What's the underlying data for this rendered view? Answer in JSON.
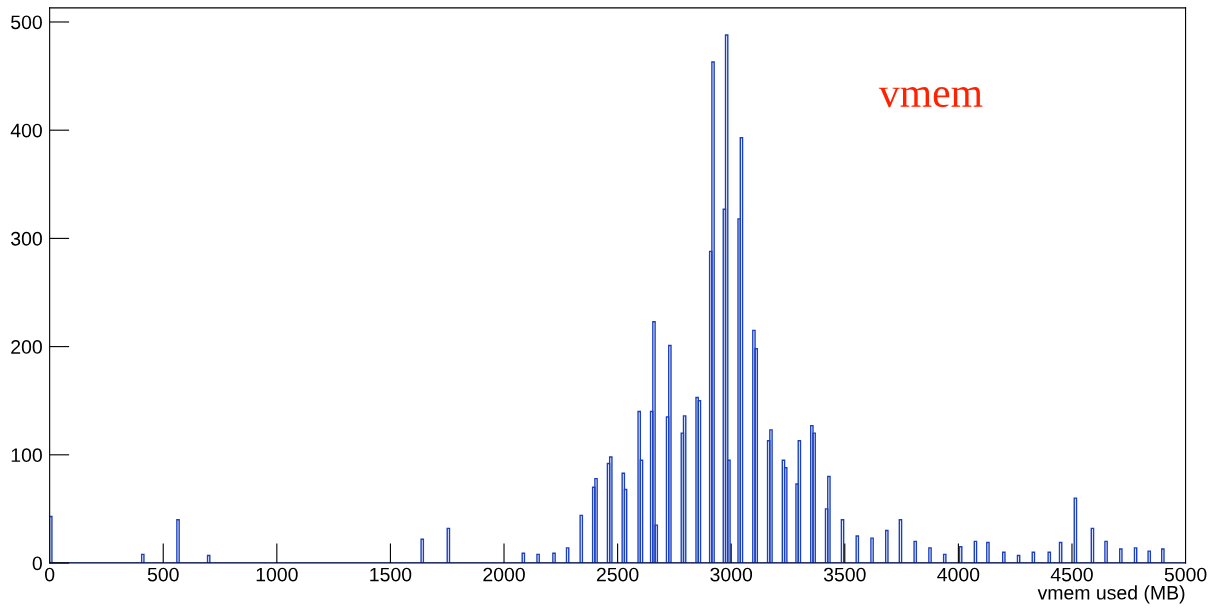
{
  "chart_data": {
    "type": "histogram",
    "xlabel": "vmem used (MB)",
    "annotations": [
      "vmem"
    ],
    "color": "#1a3fbf",
    "bins": [
      0,
      10,
      405,
      415,
      560,
      570,
      695,
      705,
      1635,
      1645,
      1750,
      1760,
      2080,
      2090,
      2145,
      2155,
      2215,
      2225,
      2275,
      2285,
      2335,
      2345,
      2390,
      2400,
      2410,
      2455,
      2465,
      2475,
      2520,
      2530,
      2540,
      2590,
      2600,
      2610,
      2645,
      2655,
      2665,
      2675,
      2715,
      2725,
      2735,
      2780,
      2790,
      2800,
      2845,
      2855,
      2865,
      2905,
      2915,
      2925,
      2965,
      2975,
      2985,
      2995,
      3030,
      3040,
      3050,
      3095,
      3105,
      3115,
      3160,
      3170,
      3180,
      3225,
      3235,
      3245,
      3285,
      3295,
      3305,
      3350,
      3360,
      3370,
      3415,
      3425,
      3435,
      3485,
      3495,
      3550,
      3560,
      3615,
      3625,
      3680,
      3690,
      3740,
      3750,
      3805,
      3815,
      3870,
      3880,
      3935,
      3945,
      4005,
      4015,
      4070,
      4080,
      4125,
      4135,
      4195,
      4205,
      4260,
      4270,
      4325,
      4335,
      4395,
      4405,
      4445,
      4455,
      4510,
      4520,
      4585,
      4595,
      4645,
      4655,
      4710,
      4720,
      4775,
      4785,
      4835,
      4845,
      4895,
      4905,
      5000
    ],
    "values": [
      43,
      0,
      8,
      0,
      40,
      0,
      7,
      0,
      22,
      0,
      32,
      0,
      9,
      0,
      8,
      0,
      9,
      0,
      14,
      0,
      44,
      0,
      70,
      78,
      0,
      92,
      98,
      0,
      83,
      68,
      0,
      140,
      95,
      0,
      140,
      223,
      35,
      0,
      135,
      201,
      0,
      120,
      136,
      0,
      153,
      150,
      0,
      288,
      463,
      0,
      327,
      488,
      95,
      0,
      318,
      393,
      0,
      215,
      198,
      0,
      113,
      123,
      0,
      95,
      88,
      0,
      73,
      113,
      0,
      127,
      120,
      0,
      50,
      80,
      0,
      40,
      0,
      25,
      0,
      23,
      0,
      30,
      0,
      40,
      0,
      20,
      0,
      14,
      0,
      8,
      0,
      15,
      0,
      20,
      0,
      19,
      0,
      10,
      0,
      7,
      0,
      10,
      0,
      10,
      0,
      19,
      0,
      60,
      0,
      32,
      0,
      20,
      0,
      13,
      0,
      14,
      0,
      11,
      0,
      13,
      0
    ],
    "xlim": [
      0,
      5000
    ],
    "xticks": [
      0,
      500,
      1000,
      1500,
      2000,
      2500,
      3000,
      3500,
      4000,
      4500,
      5000
    ],
    "ylim": [
      0,
      513
    ],
    "yticks": [
      0,
      100,
      200,
      300,
      400,
      500
    ],
    "grid": false
  }
}
